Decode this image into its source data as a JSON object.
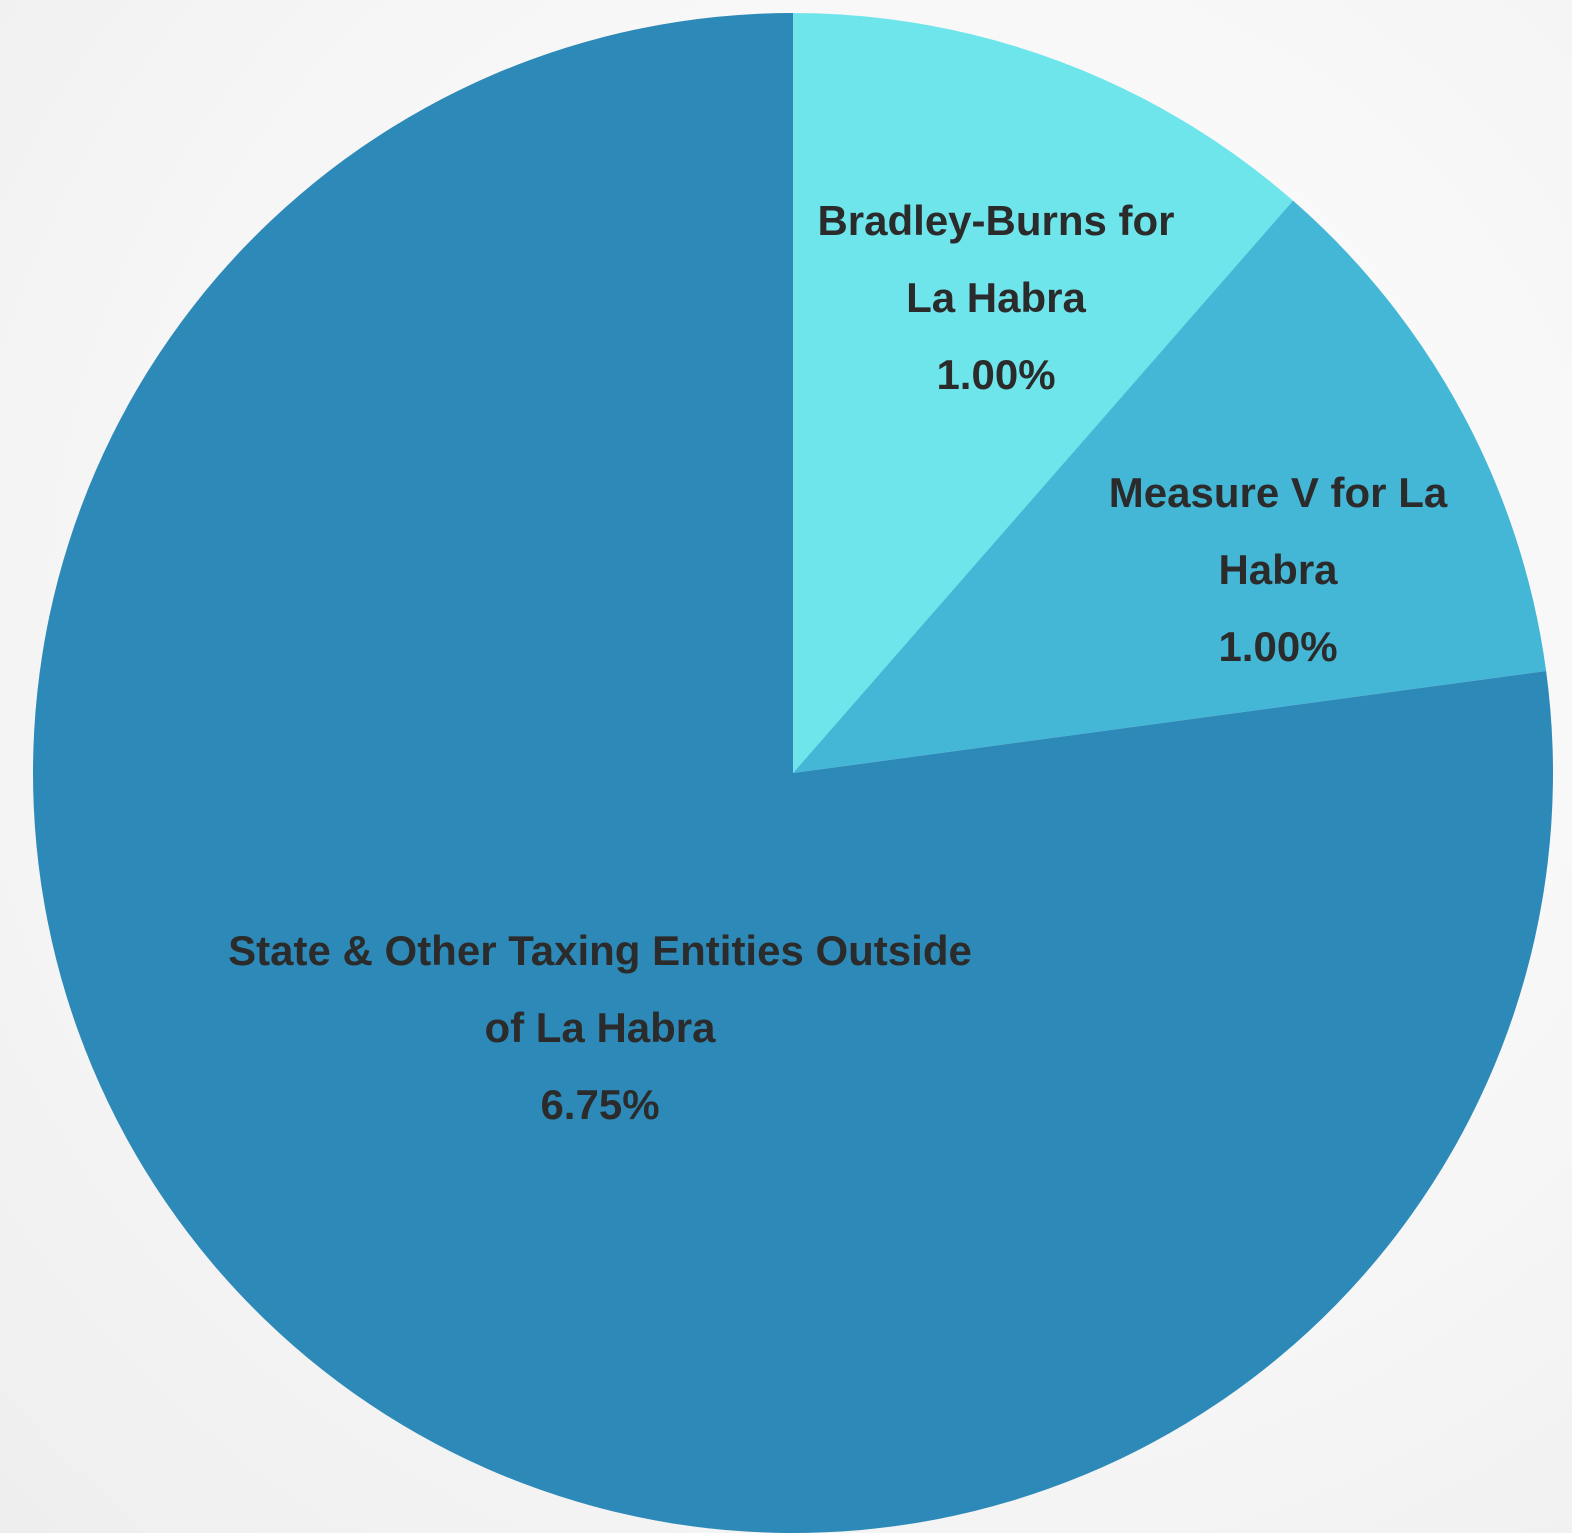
{
  "chart_data": {
    "type": "pie",
    "start_angle_deg": 0,
    "direction": "clockwise",
    "legend": "none",
    "slices": [
      {
        "label_lines": [
          "Bradley-Burns for",
          "La Habra"
        ],
        "value_text": "1.00%",
        "value": 1.0,
        "color": "#6ee5eb"
      },
      {
        "label_lines": [
          "Measure V for La",
          "Habra"
        ],
        "value_text": "1.00%",
        "value": 1.0,
        "color": "#44b7d6"
      },
      {
        "label_lines": [
          "State & Other Taxing Entities Outside",
          "of La Habra"
        ],
        "value_text": "6.75%",
        "value": 6.75,
        "color": "#2d8ab8"
      }
    ]
  }
}
